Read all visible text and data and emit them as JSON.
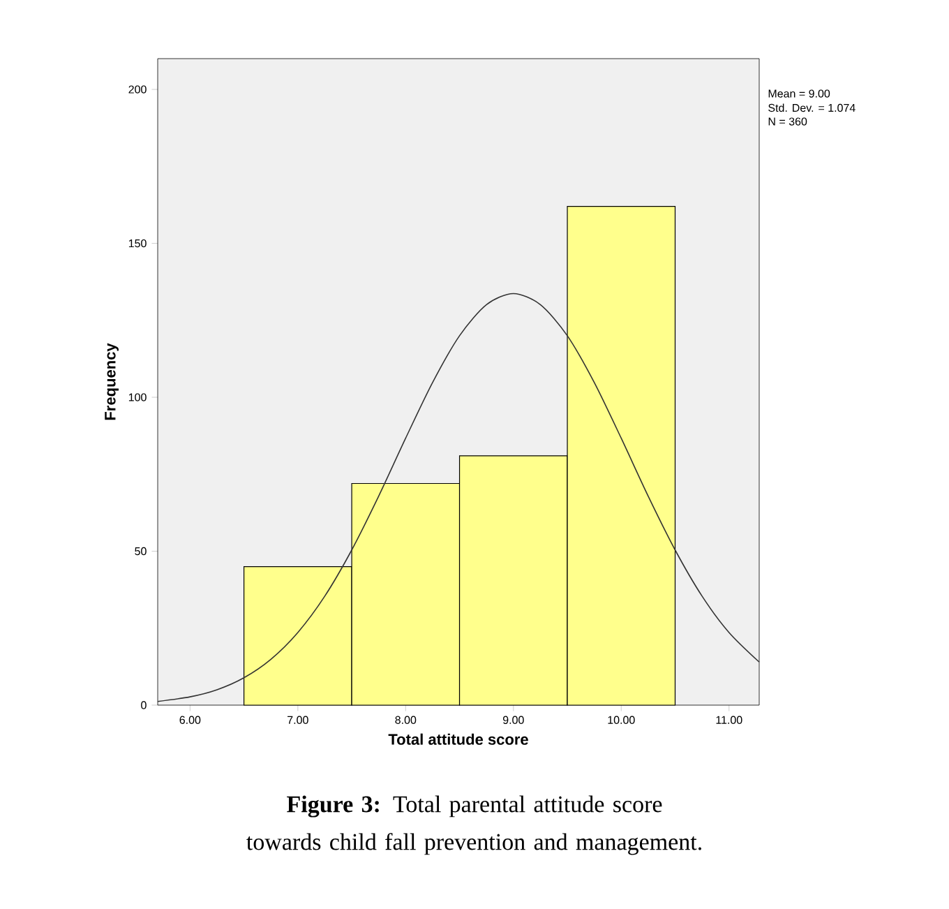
{
  "chart_data": {
    "type": "histogram",
    "xlabel": "Total attitude score",
    "ylabel": "Frequency",
    "bins": [
      6.5,
      7.5,
      8.5,
      9.5,
      10.5
    ],
    "values": [
      45,
      72,
      81,
      162
    ],
    "color": "#ffff8c",
    "series": [
      {
        "type": "line",
        "color": "#333333",
        "x": [
          5.7,
          6,
          6.25,
          6.5,
          6.75,
          7,
          7.25,
          7.5,
          7.75,
          8,
          8.25,
          8.5,
          8.75,
          9,
          9.25,
          9.5,
          9.75,
          10,
          10.25,
          10.5,
          10.75,
          11,
          11.28
        ],
        "values": [
          1.2,
          2.7,
          5,
          8.9,
          14.9,
          23.6,
          35.4,
          50.4,
          67.9,
          86.7,
          104.8,
          120,
          130.1,
          133.7,
          130.1,
          120,
          104.8,
          86.7,
          67.9,
          50.4,
          35.4,
          23.6,
          14
        ]
      }
    ],
    "xlim": [
      5.7,
      11.28
    ],
    "ylim": [
      0,
      210
    ],
    "xticks": [
      {
        "value": 6,
        "label": "6.00"
      },
      {
        "value": 7,
        "label": "7.00"
      },
      {
        "value": 8,
        "label": "8.00"
      },
      {
        "value": 9,
        "label": "9.00"
      },
      {
        "value": 10,
        "label": "10.00"
      },
      {
        "value": 11,
        "label": "11.00"
      }
    ],
    "yticks": [
      0,
      50,
      100,
      150,
      200
    ],
    "annotations": [
      "Mean = 9.00",
      "Std. Dev. = 1.074",
      "N = 360",
      "**Figure 3:** Total parental attitude score towards child fall prevention and management."
    ]
  }
}
